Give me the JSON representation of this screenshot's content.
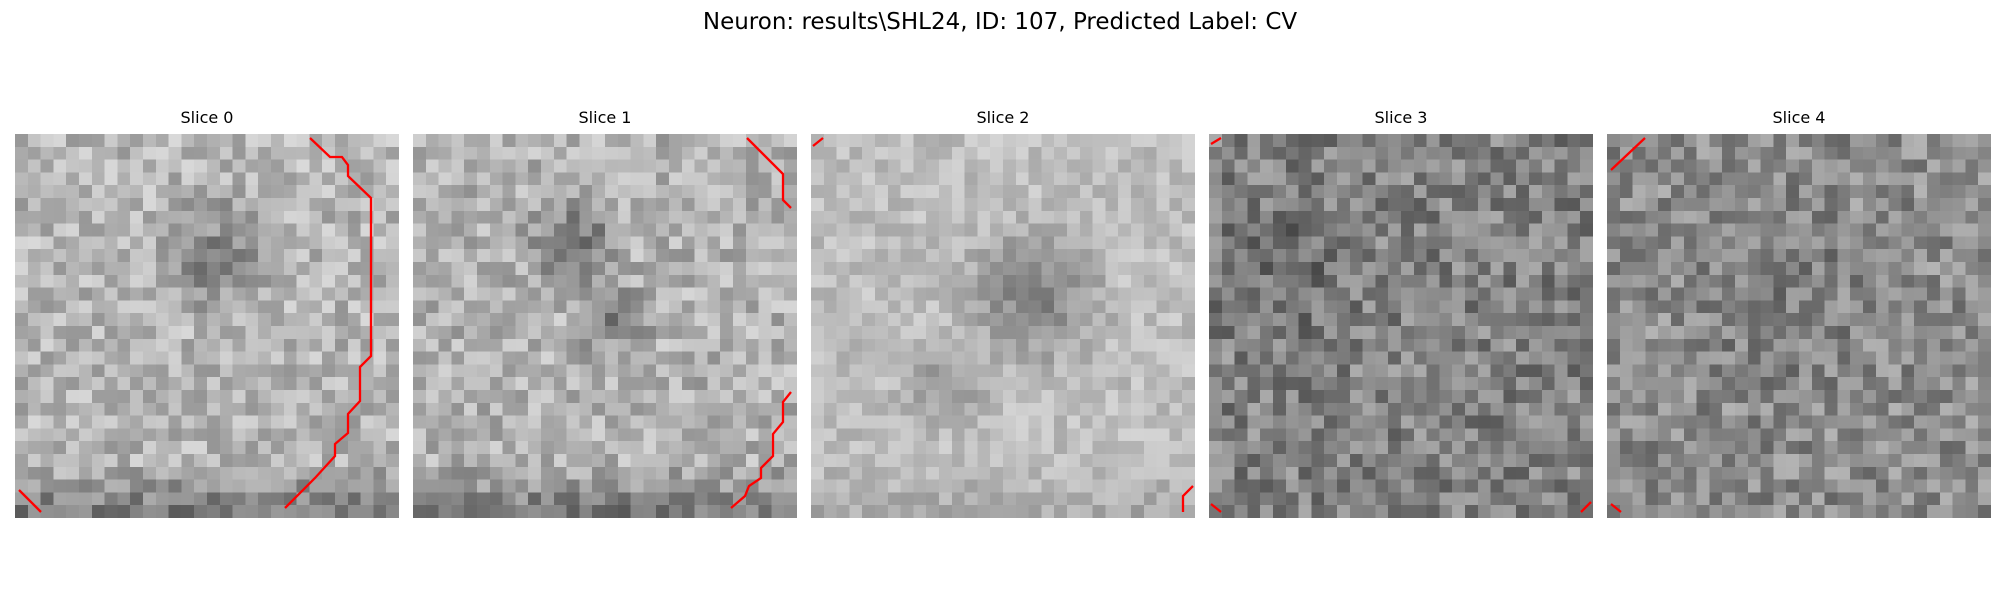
{
  "figure": {
    "title": "Neuron: results\\SHL24, ID: 107, Predicted Label: CV"
  },
  "contour_color": "#ff0000",
  "colormap": "gray",
  "slices": [
    {
      "title": "Slice 0"
    },
    {
      "title": "Slice 1"
    },
    {
      "title": "Slice 2"
    },
    {
      "title": "Slice 3"
    },
    {
      "title": "Slice 4"
    }
  ]
}
